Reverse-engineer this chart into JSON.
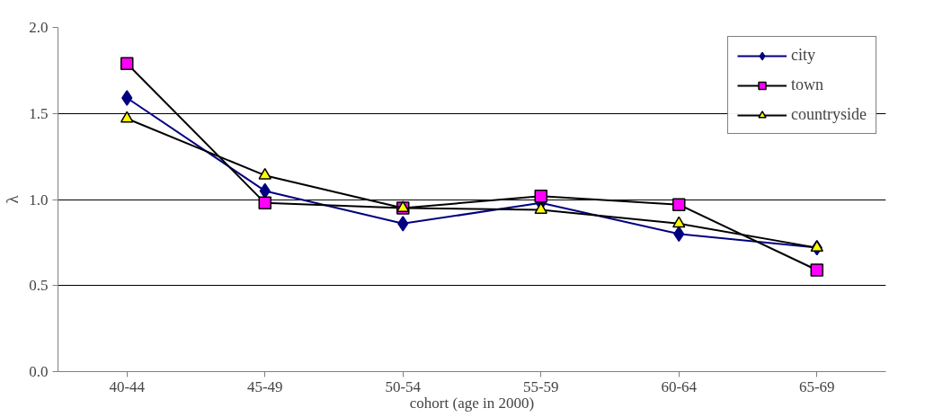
{
  "chart_data": {
    "type": "line",
    "xlabel": "cohort (age in 2000)",
    "ylabel": "λ",
    "categories": [
      "40-44",
      "45-49",
      "50-54",
      "55-59",
      "60-64",
      "65-69"
    ],
    "series": [
      {
        "name": "city",
        "color": "#000080",
        "marker": "diamond",
        "values": [
          1.59,
          1.05,
          0.86,
          0.98,
          0.8,
          0.72
        ]
      },
      {
        "name": "town",
        "color": "#ff00ff",
        "marker": "square",
        "values": [
          1.79,
          0.98,
          0.95,
          1.02,
          0.97,
          0.59
        ]
      },
      {
        "name": "countryside",
        "color": "#ffff00",
        "marker": "triangle",
        "values": [
          1.47,
          1.14,
          0.95,
          0.94,
          0.86,
          0.72
        ]
      }
    ],
    "ylim": [
      0,
      2
    ],
    "yticks": [
      {
        "value": 0,
        "label": "0.0"
      },
      {
        "value": 0.5,
        "label": "0.5"
      },
      {
        "value": 1,
        "label": "1.0"
      },
      {
        "value": 1.5,
        "label": "1.5"
      },
      {
        "value": 2,
        "label": "2.0"
      }
    ],
    "grid": "y",
    "legend": "top right"
  }
}
